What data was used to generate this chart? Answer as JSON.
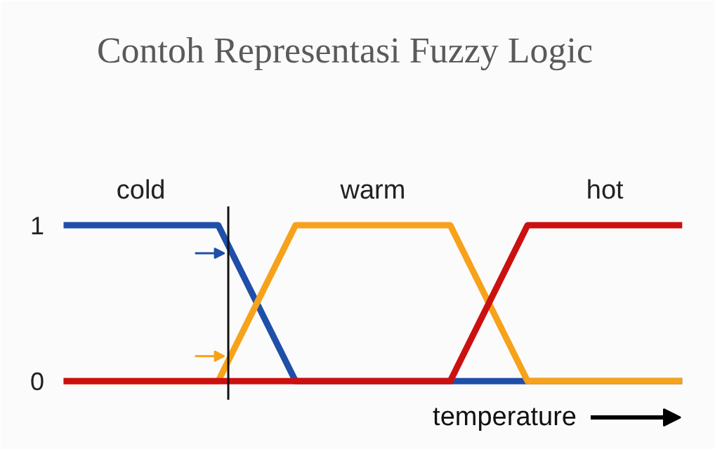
{
  "chart_data": {
    "type": "line",
    "title": "Contoh Representasi Fuzzy Logic",
    "xlabel": "temperature",
    "categories": [
      null,
      null,
      null,
      null,
      null,
      null,
      null,
      null,
      null
    ],
    "series": [
      {
        "name": "cold",
        "color": "#1f4fa8",
        "values": [
          1,
          1,
          1,
          0,
          0,
          0,
          0,
          0,
          0
        ]
      },
      {
        "name": "warm",
        "color": "#f7a21b",
        "values": [
          0,
          0,
          0,
          1,
          1,
          1,
          0,
          0,
          0
        ]
      },
      {
        "name": "hot",
        "color": "#cc1010",
        "values": [
          0,
          0,
          0,
          0,
          0,
          0,
          1,
          1,
          1
        ]
      }
    ],
    "ylim": [
      0,
      1
    ],
    "yticks": [
      0,
      1
    ],
    "grid": false,
    "marker": "none",
    "line_style": "solid"
  }
}
